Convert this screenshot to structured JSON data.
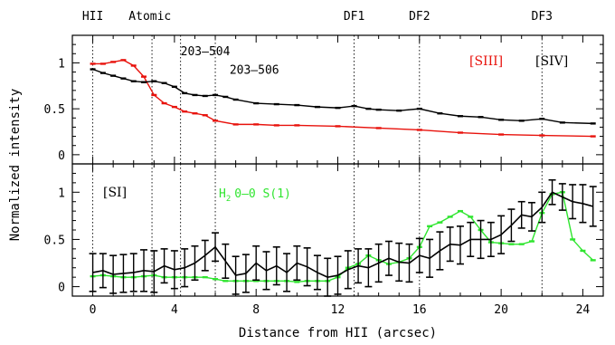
{
  "chart_data": [
    {
      "type": "line",
      "panel": "top",
      "ylabel": "Normalized intensity",
      "xlim": [
        -1,
        25
      ],
      "ylim": [
        -0.1,
        1.3
      ],
      "yticks": [
        "0",
        "0.5",
        "1"
      ],
      "top_labels": [
        {
          "text": "HII",
          "x": 0
        },
        {
          "text": "Atomic",
          "x": 3
        },
        {
          "text": "DF1",
          "x": 12.8
        },
        {
          "text": "DF2",
          "x": 16
        },
        {
          "text": "DF3",
          "x": 22
        }
      ],
      "ref_lines": [
        0,
        2.9,
        4.3,
        6.0,
        12.8,
        16.0,
        22.0
      ],
      "annotations": [
        {
          "text": "203–504",
          "x": 4.3,
          "y": 1.13
        },
        {
          "text": "203–506",
          "x": 6.7,
          "y": 0.93
        }
      ],
      "series": [
        {
          "name": "[SIII]",
          "color": "#e8120c",
          "x": [
            0,
            0.5,
            1,
            1.5,
            2,
            2.5,
            3,
            3.5,
            4,
            4.5,
            5,
            5.5,
            6,
            7,
            8,
            9,
            10,
            12,
            14,
            16,
            18,
            20,
            22,
            24.5
          ],
          "y": [
            0.99,
            0.99,
            1.01,
            1.03,
            0.97,
            0.85,
            0.65,
            0.56,
            0.52,
            0.47,
            0.45,
            0.43,
            0.37,
            0.33,
            0.33,
            0.32,
            0.32,
            0.31,
            0.29,
            0.27,
            0.24,
            0.22,
            0.21,
            0.2
          ]
        },
        {
          "name": "[SIV]",
          "color": "#000000",
          "x": [
            0,
            0.5,
            1,
            1.5,
            2,
            2.5,
            3,
            3.5,
            4,
            4.5,
            5,
            5.5,
            6,
            6.5,
            7,
            8,
            9,
            10,
            11,
            12,
            12.8,
            13.5,
            14,
            15,
            16,
            17,
            18,
            19,
            20,
            21,
            22,
            23,
            24.5
          ],
          "y": [
            0.93,
            0.89,
            0.86,
            0.83,
            0.8,
            0.79,
            0.8,
            0.78,
            0.74,
            0.67,
            0.65,
            0.64,
            0.65,
            0.63,
            0.6,
            0.56,
            0.55,
            0.54,
            0.52,
            0.51,
            0.53,
            0.5,
            0.49,
            0.48,
            0.5,
            0.45,
            0.42,
            0.41,
            0.38,
            0.37,
            0.39,
            0.35,
            0.34
          ]
        }
      ]
    },
    {
      "type": "line",
      "panel": "bottom",
      "xlabel": "Distance from HII (arcsec)",
      "ylabel": "Normalized intensity",
      "xlim": [
        -1,
        25
      ],
      "ylim": [
        -0.1,
        1.3
      ],
      "xticks": [
        "0",
        "4",
        "8",
        "12",
        "16",
        "20",
        "24"
      ],
      "yticks": [
        "0",
        "0.5",
        "1"
      ],
      "series": [
        {
          "name": "[SI]",
          "color": "#000000",
          "error_bars": true,
          "x": [
            0,
            0.5,
            1,
            1.5,
            2,
            2.5,
            3,
            3.5,
            4,
            4.5,
            5,
            5.5,
            6,
            6.5,
            7,
            7.5,
            8,
            8.5,
            9,
            9.5,
            10,
            10.5,
            11,
            11.5,
            12,
            12.5,
            13,
            13.5,
            14,
            14.5,
            15,
            15.5,
            16,
            16.5,
            17,
            17.5,
            18,
            18.5,
            19,
            19.5,
            20,
            20.5,
            21,
            21.5,
            22,
            22.5,
            23,
            23.5,
            24,
            24.5
          ],
          "y": [
            0.15,
            0.17,
            0.13,
            0.14,
            0.15,
            0.17,
            0.16,
            0.22,
            0.18,
            0.2,
            0.25,
            0.33,
            0.42,
            0.27,
            0.12,
            0.14,
            0.25,
            0.17,
            0.22,
            0.15,
            0.25,
            0.21,
            0.15,
            0.1,
            0.12,
            0.18,
            0.22,
            0.2,
            0.25,
            0.3,
            0.26,
            0.25,
            0.33,
            0.3,
            0.38,
            0.45,
            0.44,
            0.5,
            0.5,
            0.5,
            0.55,
            0.65,
            0.76,
            0.74,
            0.84,
            1.0,
            0.95,
            0.9,
            0.88,
            0.85
          ],
          "err": [
            0.2,
            0.18,
            0.2,
            0.2,
            0.2,
            0.22,
            0.22,
            0.18,
            0.2,
            0.2,
            0.18,
            0.16,
            0.15,
            0.18,
            0.2,
            0.2,
            0.18,
            0.2,
            0.2,
            0.2,
            0.18,
            0.2,
            0.18,
            0.2,
            0.2,
            0.2,
            0.18,
            0.2,
            0.2,
            0.18,
            0.2,
            0.2,
            0.18,
            0.2,
            0.2,
            0.18,
            0.2,
            0.18,
            0.2,
            0.18,
            0.2,
            0.17,
            0.14,
            0.15,
            0.16,
            0.13,
            0.14,
            0.18,
            0.2,
            0.21
          ]
        },
        {
          "name": "H2 0-0 S(1)",
          "color": "#2fe52f",
          "x": [
            0,
            0.5,
            1,
            1.5,
            2,
            2.5,
            3,
            3.5,
            4,
            4.5,
            5,
            5.5,
            6,
            6.5,
            7,
            7.5,
            8,
            8.5,
            9,
            9.5,
            10,
            10.5,
            11,
            11.5,
            12,
            12.5,
            13,
            13.5,
            14,
            14.5,
            15,
            15.5,
            16,
            16.5,
            17,
            17.5,
            18,
            18.5,
            19,
            19.5,
            20,
            20.5,
            21,
            21.5,
            22,
            22.5,
            23,
            23.5,
            24,
            24.5
          ],
          "y": [
            0.11,
            0.12,
            0.11,
            0.1,
            0.1,
            0.11,
            0.12,
            0.1,
            0.1,
            0.1,
            0.1,
            0.1,
            0.08,
            0.06,
            0.06,
            0.06,
            0.06,
            0.06,
            0.06,
            0.06,
            0.05,
            0.06,
            0.06,
            0.06,
            0.1,
            0.2,
            0.24,
            0.33,
            0.28,
            0.24,
            0.26,
            0.3,
            0.42,
            0.64,
            0.68,
            0.74,
            0.8,
            0.74,
            0.6,
            0.47,
            0.46,
            0.45,
            0.45,
            0.48,
            0.78,
            0.98,
            1.0,
            0.5,
            0.38,
            0.28
          ]
        }
      ]
    }
  ],
  "text": {
    "siii_label": "[SIII]",
    "siv_label": "[SIV]",
    "si_label": "[SI]",
    "h2_label": "0–0 S(1)",
    "h2_symbol": "H",
    "h2_sub": "2"
  },
  "colors": {
    "red": "#e8120c",
    "green": "#2fe52f",
    "black": "#000000"
  }
}
